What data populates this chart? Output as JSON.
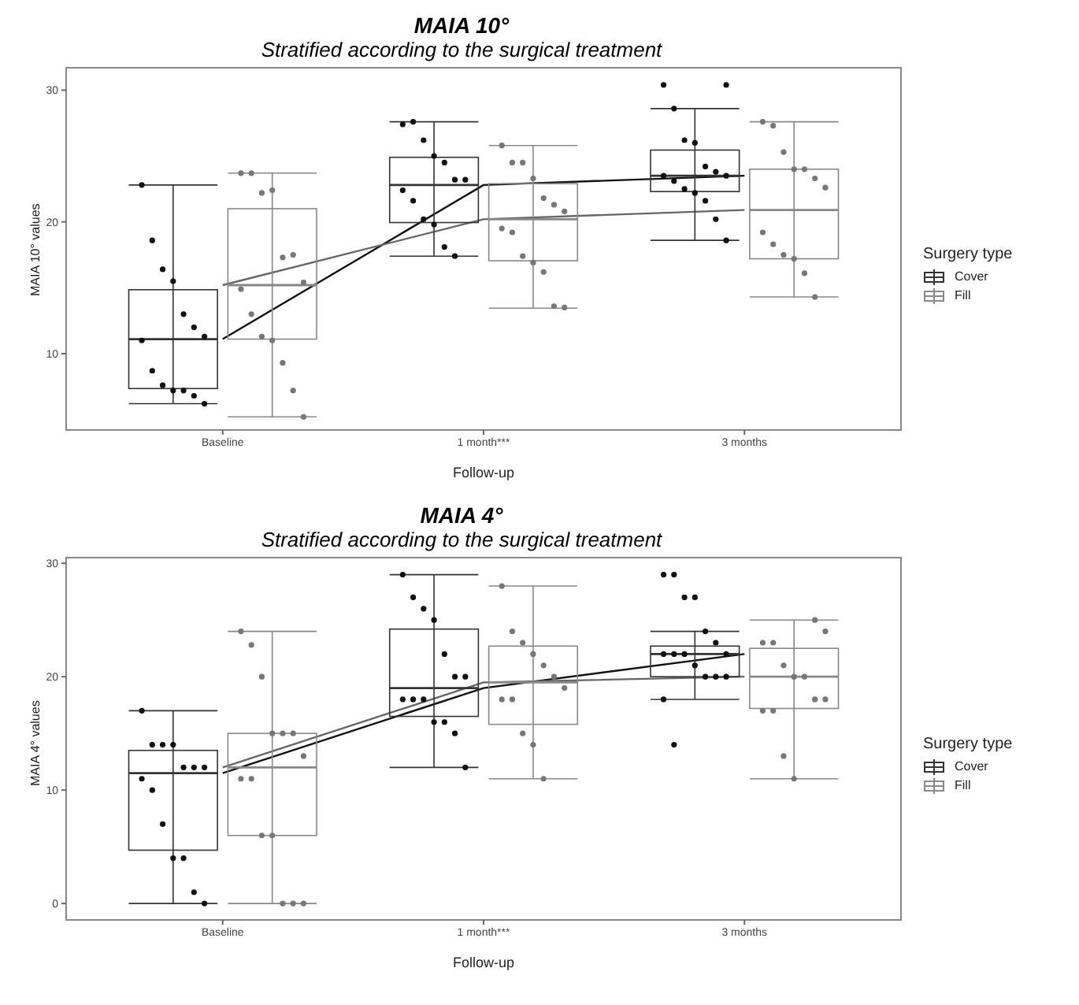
{
  "chart_data": [
    {
      "type": "box",
      "title": "MAIA 10°",
      "subtitle": "Stratified according to the surgical treatment",
      "xlabel": "Follow-up",
      "ylabel": "MAIA 10° values",
      "categories": [
        "Baseline",
        "1 month***",
        "3 months"
      ],
      "ylim": [
        4.2,
        31.7
      ],
      "yticks": [
        10,
        20,
        30
      ],
      "legend": "right",
      "legend_title": "Surgery type",
      "series": [
        {
          "name": "Cover",
          "color": "#333333",
          "boxes": [
            {
              "low": 6.2,
              "q1": 7.35,
              "median": 11.1,
              "q3": 14.85,
              "high": 22.8
            },
            {
              "low": 17.4,
              "q1": 19.95,
              "median": 22.8,
              "q3": 24.9,
              "high": 27.6
            },
            {
              "low": 18.6,
              "q1": 22.3,
              "median": 23.5,
              "q3": 25.45,
              "high": 28.6
            }
          ]
        },
        {
          "name": "Fill",
          "color": "#888888",
          "boxes": [
            {
              "low": 5.2,
              "q1": 11.1,
              "median": 15.2,
              "q3": 21.0,
              "high": 23.7
            },
            {
              "low": 13.45,
              "q1": 17.05,
              "median": 20.2,
              "q3": 22.9,
              "high": 25.8
            },
            {
              "low": 14.3,
              "q1": 17.2,
              "median": 20.9,
              "q3": 24.0,
              "high": 27.6
            }
          ]
        },
        {
          "type": "line",
          "color": "#111111",
          "values": [
            11.1,
            22.8,
            23.5
          ]
        },
        {
          "type": "line",
          "color": "#666666",
          "values": [
            15.2,
            20.2,
            20.9
          ]
        },
        {
          "type": "scatter",
          "color": "#111111",
          "x": [
            "Baseline",
            "Baseline",
            "Baseline",
            "Baseline",
            "Baseline",
            "Baseline",
            "Baseline",
            "Baseline",
            "Baseline",
            "Baseline",
            "Baseline",
            "Baseline",
            "Baseline",
            "Baseline",
            "1 month***",
            "1 month***",
            "1 month***",
            "1 month***",
            "1 month***",
            "1 month***",
            "1 month***",
            "1 month***",
            "1 month***",
            "1 month***",
            "1 month***",
            "1 month***",
            "1 month***",
            "3 months",
            "3 months",
            "3 months",
            "3 months",
            "3 months",
            "3 months",
            "3 months",
            "3 months",
            "3 months",
            "3 months",
            "3 months",
            "3 months",
            "3 months",
            "3 months",
            "3 months"
          ],
          "values": [
            22.8,
            18.6,
            16.4,
            15.5,
            13.0,
            12.0,
            11.3,
            11.0,
            8.7,
            7.6,
            7.2,
            7.2,
            6.8,
            6.2,
            27.4,
            27.6,
            26.2,
            25.0,
            24.5,
            23.2,
            23.2,
            22.4,
            21.6,
            20.2,
            19.8,
            18.1,
            17.4,
            30.4,
            30.4,
            28.6,
            26.2,
            26.0,
            24.2,
            23.8,
            23.5,
            23.5,
            23.1,
            22.5,
            22.2,
            21.6,
            20.2,
            18.6
          ]
        },
        {
          "type": "scatter",
          "color": "#777777",
          "x": [
            "Baseline",
            "Baseline",
            "Baseline",
            "Baseline",
            "Baseline",
            "Baseline",
            "Baseline",
            "Baseline",
            "Baseline",
            "Baseline",
            "Baseline",
            "Baseline",
            "Baseline",
            "Baseline",
            "1 month***",
            "1 month***",
            "1 month***",
            "1 month***",
            "1 month***",
            "1 month***",
            "1 month***",
            "1 month***",
            "1 month***",
            "1 month***",
            "1 month***",
            "1 month***",
            "1 month***",
            "1 month***",
            "3 months",
            "3 months",
            "3 months",
            "3 months",
            "3 months",
            "3 months",
            "3 months",
            "3 months",
            "3 months",
            "3 months",
            "3 months",
            "3 months",
            "3 months"
          ],
          "values": [
            23.7,
            23.7,
            22.2,
            22.4,
            17.3,
            17.5,
            15.4,
            14.9,
            13.0,
            11.3,
            11.0,
            9.3,
            7.2,
            5.2,
            25.8,
            24.5,
            24.5,
            23.3,
            21.8,
            21.3,
            20.8,
            19.5,
            19.2,
            17.4,
            16.9,
            16.2,
            13.6,
            13.5,
            27.6,
            27.3,
            25.3,
            24.0,
            24.0,
            23.3,
            22.6,
            19.2,
            18.3,
            17.5,
            17.2,
            16.1,
            14.3
          ]
        }
      ]
    },
    {
      "type": "box",
      "title": "MAIA 4°",
      "subtitle": "Stratified according to the surgical treatment",
      "xlabel": "Follow-up",
      "ylabel": "MAIA 4° values",
      "categories": [
        "Baseline",
        "1 month***",
        "3 months"
      ],
      "ylim": [
        -1.45,
        30.5
      ],
      "yticks": [
        0,
        10,
        20,
        30
      ],
      "legend": "right",
      "legend_title": "Surgery type",
      "series": [
        {
          "name": "Cover",
          "color": "#333333",
          "boxes": [
            {
              "low": 0,
              "q1": 4.7,
              "median": 11.5,
              "q3": 13.5,
              "high": 17.0
            },
            {
              "low": 12.0,
              "q1": 16.5,
              "median": 19.0,
              "q3": 24.2,
              "high": 29.0
            },
            {
              "low": 18.0,
              "q1": 20.0,
              "median": 22.0,
              "q3": 22.7,
              "high": 24.0
            }
          ]
        },
        {
          "name": "Fill",
          "color": "#888888",
          "boxes": [
            {
              "low": 0,
              "q1": 6.0,
              "median": 12.0,
              "q3": 15.0,
              "high": 24.0
            },
            {
              "low": 11.0,
              "q1": 15.8,
              "median": 19.5,
              "q3": 22.7,
              "high": 28.0
            },
            {
              "low": 11.0,
              "q1": 17.2,
              "median": 20.0,
              "q3": 22.5,
              "high": 25.0
            }
          ]
        },
        {
          "type": "line",
          "color": "#111111",
          "values": [
            11.5,
            19.0,
            22.0
          ]
        },
        {
          "type": "line",
          "color": "#666666",
          "values": [
            12.0,
            19.5,
            20.0
          ]
        },
        {
          "type": "scatter",
          "color": "#111111",
          "x": [
            "Baseline",
            "Baseline",
            "Baseline",
            "Baseline",
            "Baseline",
            "Baseline",
            "Baseline",
            "Baseline",
            "Baseline",
            "Baseline",
            "Baseline",
            "Baseline",
            "Baseline",
            "Baseline",
            "1 month***",
            "1 month***",
            "1 month***",
            "1 month***",
            "1 month***",
            "1 month***",
            "1 month***",
            "1 month***",
            "1 month***",
            "1 month***",
            "1 month***",
            "1 month***",
            "1 month***",
            "1 month***",
            "3 months",
            "3 months",
            "3 months",
            "3 months",
            "3 months",
            "3 months",
            "3 months",
            "3 months",
            "3 months",
            "3 months",
            "3 months",
            "3 months",
            "3 months",
            "3 months",
            "3 months",
            "3 months"
          ],
          "values": [
            17,
            14,
            14,
            14,
            12,
            12,
            12,
            11,
            10,
            7,
            4,
            4,
            1,
            0,
            29,
            27,
            26,
            25,
            22,
            20,
            20,
            18,
            18,
            18,
            16,
            16,
            15,
            12,
            29,
            29,
            27,
            27,
            24,
            23,
            22,
            22,
            22,
            22,
            21,
            20,
            20,
            20,
            18,
            14
          ]
        },
        {
          "type": "scatter",
          "color": "#777777",
          "x": [
            "Baseline",
            "Baseline",
            "Baseline",
            "Baseline",
            "Baseline",
            "Baseline",
            "Baseline",
            "Baseline",
            "Baseline",
            "Baseline",
            "Baseline",
            "Baseline",
            "Baseline",
            "Baseline",
            "1 month***",
            "1 month***",
            "1 month***",
            "1 month***",
            "1 month***",
            "1 month***",
            "1 month***",
            "1 month***",
            "1 month***",
            "1 month***",
            "1 month***",
            "1 month***",
            "3 months",
            "3 months",
            "3 months",
            "3 months",
            "3 months",
            "3 months",
            "3 months",
            "3 months",
            "3 months",
            "3 months",
            "3 months",
            "3 months",
            "3 months"
          ],
          "values": [
            24,
            22.8,
            20,
            15,
            15,
            15,
            13,
            11,
            11,
            6,
            6,
            0,
            0,
            0,
            28,
            24,
            23,
            22,
            21,
            20,
            19,
            18,
            18,
            15,
            14,
            11,
            25,
            24,
            23,
            23,
            21,
            20,
            20,
            18,
            18,
            17,
            17,
            13,
            11
          ]
        }
      ]
    }
  ]
}
